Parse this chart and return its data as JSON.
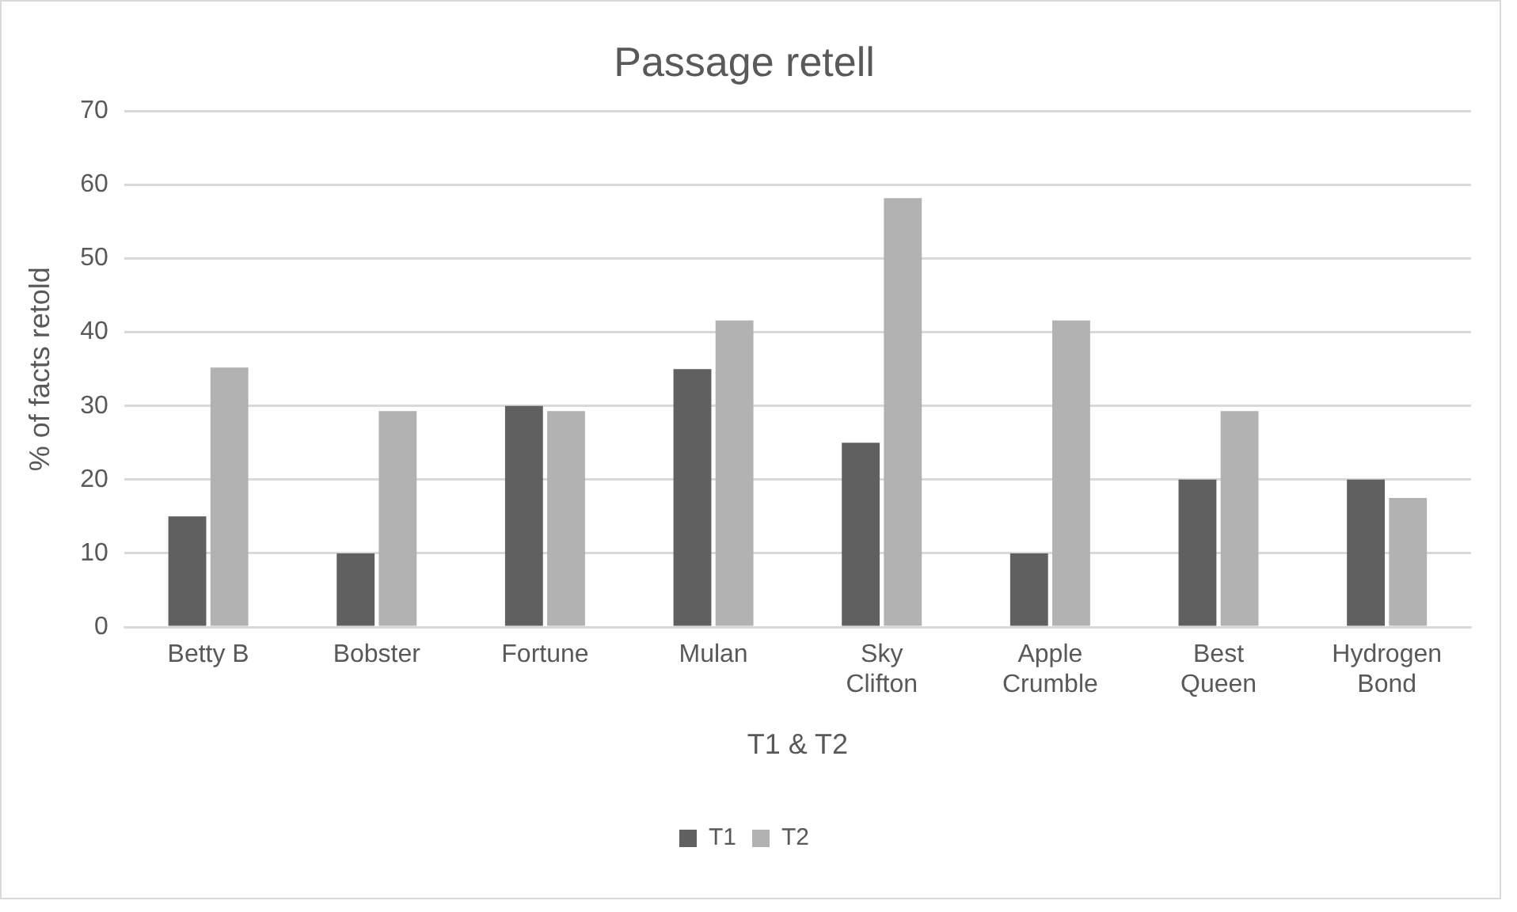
{
  "chart_data": {
    "type": "bar",
    "title": "Passage retell",
    "xlabel": "T1 & T2",
    "ylabel": "% of facts retold",
    "categories": [
      "Betty B",
      "Bobster",
      "Fortune",
      "Mulan",
      "Sky Clifton",
      "Apple Crumble",
      "Best Queen",
      "Hydrogen Bond"
    ],
    "series": [
      {
        "name": "T1",
        "color": "#606060",
        "values": [
          15,
          10,
          30,
          35,
          25,
          10,
          20,
          20
        ]
      },
      {
        "name": "T2",
        "color": "#b2b2b2",
        "values": [
          35.2,
          29.3,
          29.3,
          41.6,
          58.2,
          41.6,
          29.3,
          17.5
        ]
      }
    ],
    "ylim": [
      0,
      70
    ],
    "yticks": [
      0,
      10,
      20,
      30,
      40,
      50,
      60,
      70
    ],
    "grid": "y",
    "legend": "bottom"
  }
}
